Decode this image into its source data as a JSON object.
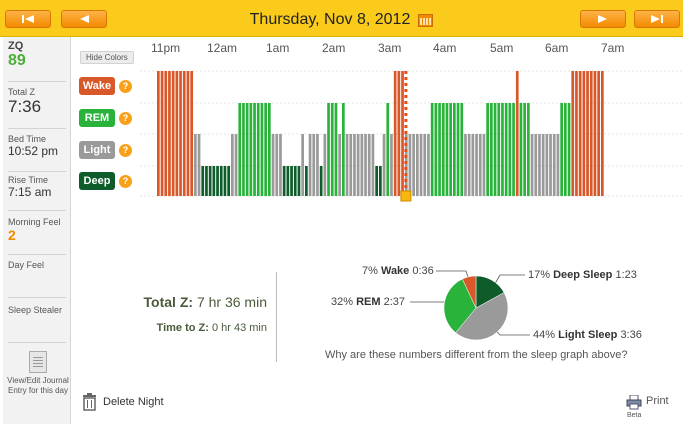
{
  "header": {
    "date": "Thursday, Nov 8, 2012",
    "colors": {
      "bar": "#fbcb1c",
      "button": "#f28a00"
    }
  },
  "sidebar": {
    "zq_label": "ZQ",
    "zq_value": "89",
    "total_z_label": "Total Z",
    "total_z_value": "7:36",
    "bed_time_label": "Bed Time",
    "bed_time_value": "10:52 pm",
    "rise_time_label": "Rise Time",
    "rise_time_value": "7:15 am",
    "morning_feel_label": "Morning Feel",
    "morning_feel_value": "2",
    "day_feel_label": "Day Feel",
    "sleep_stealer_label": "Sleep Stealer",
    "journal_label": "View/Edit Journal Entry for this day"
  },
  "graph": {
    "hide_colors_label": "Hide Colors",
    "stages": [
      {
        "key": "wake",
        "label": "Wake",
        "color": "#d9582a"
      },
      {
        "key": "rem",
        "label": "REM",
        "color": "#2ab33b"
      },
      {
        "key": "light",
        "label": "Light",
        "color": "#9a9a9a"
      },
      {
        "key": "deep",
        "label": "Deep",
        "color": "#0d5c2a"
      }
    ],
    "help_glyph": "?",
    "time_labels": [
      "11pm",
      "12am",
      "1am",
      "2am",
      "3am",
      "4am",
      "5am",
      "6am",
      "7am"
    ],
    "hypnogram": [
      {
        "s": "wake",
        "w": 10
      },
      {
        "s": "light",
        "w": 2
      },
      {
        "s": "deep",
        "w": 8
      },
      {
        "s": "light",
        "w": 2
      },
      {
        "s": "rem",
        "w": 9
      },
      {
        "s": "light",
        "w": 3
      },
      {
        "s": "deep",
        "w": 5
      },
      {
        "s": "light",
        "w": 1
      },
      {
        "s": "deep",
        "w": 1
      },
      {
        "s": "light",
        "w": 3
      },
      {
        "s": "deep",
        "w": 1
      },
      {
        "s": "light",
        "w": 1
      },
      {
        "s": "rem",
        "w": 3
      },
      {
        "s": "light",
        "w": 1
      },
      {
        "s": "rem",
        "w": 1
      },
      {
        "s": "light",
        "w": 8
      },
      {
        "s": "deep",
        "w": 2
      },
      {
        "s": "light",
        "w": 1
      },
      {
        "s": "rem",
        "w": 1
      },
      {
        "s": "light",
        "w": 1
      },
      {
        "s": "wake",
        "w": 3
      },
      {
        "s": "light",
        "w": 7
      },
      {
        "s": "rem",
        "w": 9
      },
      {
        "s": "light",
        "w": 6
      },
      {
        "s": "rem",
        "w": 8
      },
      {
        "s": "wake",
        "w": 1
      },
      {
        "s": "rem",
        "w": 3
      },
      {
        "s": "light",
        "w": 8
      },
      {
        "s": "rem",
        "w": 3
      },
      {
        "s": "wake",
        "w": 9
      }
    ],
    "marker_step": 67
  },
  "summary": {
    "total_z_label": "Total Z:",
    "total_z_value": "7 hr 36 min",
    "time_to_z_label": "Time to Z:",
    "time_to_z_value": "0 hr 43 min",
    "why_link": "Why are these numbers different from the sleep graph above?"
  },
  "chart_data": {
    "type": "pie",
    "slices": [
      {
        "name": "Deep Sleep",
        "percent": 17,
        "duration": "1:23",
        "color": "#0d5c2a"
      },
      {
        "name": "Light Sleep",
        "percent": 44,
        "duration": "3:36",
        "color": "#9a9a9a"
      },
      {
        "name": "REM",
        "percent": 32,
        "duration": "2:37",
        "color": "#2ab33b"
      },
      {
        "name": "Wake",
        "percent": 7,
        "duration": "0:36",
        "color": "#d9582a"
      }
    ],
    "labels": {
      "wake": {
        "pct": "7%",
        "name": "Wake",
        "dur": "0:36"
      },
      "deep": {
        "pct": "17%",
        "name": "Deep Sleep",
        "dur": "1:23"
      },
      "rem": {
        "pct": "32%",
        "name": "REM",
        "dur": "2:37"
      },
      "light": {
        "pct": "44%",
        "name": "Light Sleep",
        "dur": "3:36"
      }
    }
  },
  "footer": {
    "delete_label": "Delete Night",
    "print_label": "Print",
    "beta_label": "Beta"
  }
}
